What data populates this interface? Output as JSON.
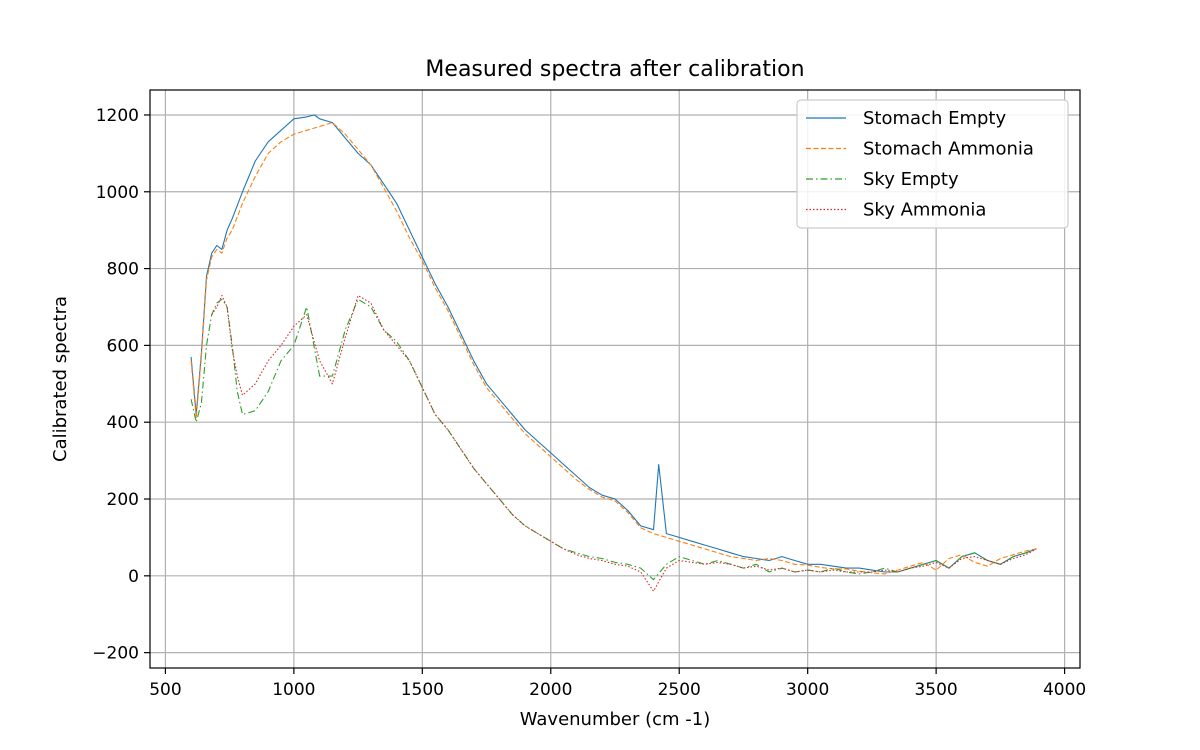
{
  "chart_data": {
    "type": "line",
    "title": "Measured spectra after calibration",
    "xlabel": "Wavenumber (cm -1)",
    "ylabel": "Calibrated spectra",
    "xlim": [
      440,
      4060
    ],
    "ylim": [
      -240,
      1265
    ],
    "xticks": [
      500,
      1000,
      1500,
      2000,
      2500,
      3000,
      3500,
      4000
    ],
    "yticks": [
      -200,
      0,
      200,
      400,
      600,
      800,
      1000,
      1200
    ],
    "grid": true,
    "legend_position": "top-right",
    "series": [
      {
        "name": "Stomach Empty",
        "color": "#1f77b4",
        "dash": "solid",
        "x": [
          600,
          620,
          640,
          660,
          680,
          700,
          720,
          740,
          760,
          800,
          850,
          900,
          950,
          1000,
          1050,
          1080,
          1100,
          1150,
          1200,
          1250,
          1300,
          1350,
          1400,
          1450,
          1500,
          1550,
          1600,
          1650,
          1700,
          1750,
          1800,
          1850,
          1900,
          1950,
          2000,
          2050,
          2100,
          2150,
          2200,
          2250,
          2300,
          2350,
          2400,
          2420,
          2450,
          2500,
          2550,
          2600,
          2650,
          2700,
          2750,
          2800,
          2850,
          2900,
          2950,
          3000,
          3050,
          3100,
          3150,
          3200,
          3250,
          3300,
          3350,
          3400,
          3450,
          3500,
          3550,
          3600,
          3650,
          3700,
          3750,
          3800,
          3850,
          3890
        ],
        "y": [
          570,
          420,
          580,
          780,
          840,
          860,
          850,
          900,
          930,
          1000,
          1080,
          1130,
          1160,
          1190,
          1195,
          1200,
          1190,
          1180,
          1140,
          1100,
          1070,
          1020,
          970,
          900,
          830,
          760,
          700,
          630,
          560,
          500,
          460,
          420,
          380,
          350,
          320,
          290,
          260,
          230,
          210,
          200,
          170,
          130,
          120,
          290,
          110,
          100,
          90,
          80,
          70,
          60,
          50,
          45,
          40,
          50,
          40,
          30,
          30,
          25,
          20,
          20,
          15,
          10,
          10,
          20,
          30,
          40,
          20,
          50,
          60,
          40,
          30,
          50,
          60,
          70
        ]
      },
      {
        "name": "Stomach Ammonia",
        "color": "#ff7f0e",
        "dash": "dashed",
        "x": [
          600,
          620,
          640,
          660,
          680,
          700,
          720,
          740,
          760,
          800,
          850,
          900,
          950,
          1000,
          1050,
          1100,
          1150,
          1200,
          1250,
          1300,
          1350,
          1400,
          1450,
          1500,
          1550,
          1600,
          1650,
          1700,
          1750,
          1800,
          1850,
          1900,
          1950,
          2000,
          2050,
          2100,
          2150,
          2200,
          2250,
          2300,
          2350,
          2400,
          2450,
          2500,
          2550,
          2600,
          2650,
          2700,
          2750,
          2800,
          2850,
          2900,
          2950,
          3000,
          3050,
          3100,
          3150,
          3200,
          3250,
          3300,
          3350,
          3400,
          3450,
          3500,
          3550,
          3600,
          3650,
          3700,
          3750,
          3800,
          3850,
          3890
        ],
        "y": [
          560,
          410,
          570,
          770,
          830,
          850,
          840,
          880,
          900,
          970,
          1040,
          1100,
          1130,
          1150,
          1160,
          1170,
          1180,
          1150,
          1110,
          1070,
          1010,
          950,
          880,
          820,
          750,
          690,
          620,
          550,
          490,
          450,
          410,
          370,
          340,
          310,
          280,
          250,
          225,
          205,
          195,
          165,
          125,
          110,
          100,
          90,
          80,
          70,
          60,
          50,
          45,
          40,
          45,
          40,
          30,
          28,
          22,
          18,
          18,
          12,
          8,
          5,
          15,
          25,
          35,
          15,
          45,
          55,
          35,
          25,
          45,
          55,
          65,
          70
        ]
      },
      {
        "name": "Sky Empty",
        "color": "#2ca02c",
        "dash": "dashdot",
        "x": [
          600,
          620,
          640,
          660,
          680,
          700,
          720,
          740,
          760,
          780,
          800,
          850,
          900,
          950,
          1000,
          1050,
          1100,
          1150,
          1200,
          1250,
          1300,
          1350,
          1400,
          1450,
          1500,
          1550,
          1600,
          1650,
          1700,
          1750,
          1800,
          1850,
          1900,
          1950,
          2000,
          2050,
          2100,
          2150,
          2200,
          2250,
          2300,
          2350,
          2400,
          2450,
          2500,
          2550,
          2600,
          2650,
          2700,
          2750,
          2800,
          2850,
          2900,
          2950,
          3000,
          3050,
          3100,
          3150,
          3200,
          3250,
          3300,
          3350,
          3400,
          3450,
          3500,
          3550,
          3600,
          3650,
          3700,
          3750,
          3800,
          3850,
          3890
        ],
        "y": [
          460,
          400,
          450,
          600,
          680,
          710,
          720,
          700,
          600,
          480,
          420,
          430,
          480,
          560,
          600,
          700,
          520,
          520,
          640,
          720,
          700,
          640,
          610,
          560,
          490,
          420,
          380,
          330,
          280,
          240,
          200,
          160,
          130,
          110,
          90,
          70,
          60,
          50,
          45,
          35,
          30,
          20,
          -10,
          30,
          50,
          40,
          30,
          40,
          30,
          20,
          30,
          10,
          20,
          10,
          15,
          10,
          20,
          10,
          5,
          10,
          20,
          10,
          20,
          30,
          40,
          20,
          50,
          60,
          40,
          30,
          50,
          60,
          70
        ]
      },
      {
        "name": "Sky Ammonia",
        "color": "#d62728",
        "dash": "dotted",
        "x": [
          680,
          700,
          720,
          740,
          760,
          780,
          800,
          850,
          900,
          950,
          1000,
          1050,
          1100,
          1150,
          1200,
          1250,
          1300,
          1350,
          1400,
          1450,
          1500,
          1550,
          1600,
          1650,
          1700,
          1750,
          1800,
          1850,
          1900,
          1950,
          2000,
          2050,
          2100,
          2150,
          2200,
          2250,
          2300,
          2350,
          2400,
          2450,
          2500,
          2550,
          2600,
          2650,
          2700,
          2750,
          2800,
          2850,
          2900,
          2950,
          3000,
          3050,
          3100,
          3150,
          3200,
          3250,
          3300,
          3350,
          3400,
          3450,
          3500,
          3550,
          3600,
          3650,
          3700,
          3750,
          3800,
          3850,
          3890
        ],
        "y": [
          680,
          700,
          730,
          700,
          590,
          520,
          470,
          500,
          560,
          600,
          650,
          680,
          560,
          500,
          620,
          730,
          710,
          640,
          600,
          560,
          490,
          420,
          380,
          330,
          280,
          240,
          200,
          160,
          130,
          110,
          90,
          70,
          55,
          45,
          40,
          30,
          25,
          10,
          -40,
          20,
          40,
          35,
          30,
          35,
          30,
          20,
          25,
          15,
          20,
          10,
          15,
          10,
          15,
          10,
          10,
          10,
          15,
          10,
          20,
          25,
          35,
          20,
          45,
          50,
          40,
          30,
          45,
          55,
          70
        ]
      }
    ]
  }
}
